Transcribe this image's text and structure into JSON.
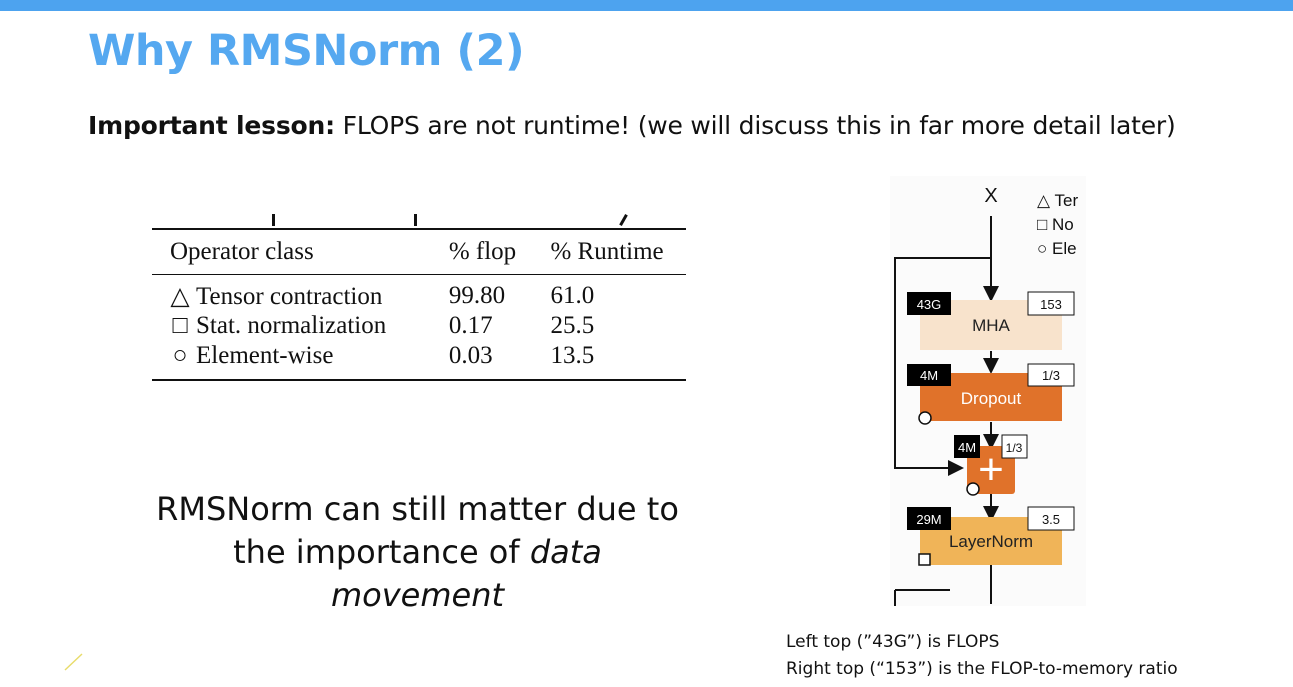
{
  "slide": {
    "title": "Why RMSNorm (2)",
    "lesson_label": "Important lesson:",
    "lesson_text": " FLOPS are not runtime! (we will discuss this in far more detail later)"
  },
  "table": {
    "headers": [
      "Operator class",
      "% flop",
      "% Runtime"
    ],
    "rows": [
      {
        "symbol": "△",
        "operator": "Tensor contraction",
        "flop": "99.80",
        "runtime": "61.0"
      },
      {
        "symbol": "□",
        "operator": "Stat. normalization",
        "flop": "0.17",
        "runtime": "25.5"
      },
      {
        "symbol": "○",
        "operator": "Element-wise",
        "flop": "0.03",
        "runtime": "13.5"
      }
    ]
  },
  "caption": {
    "line1": "RMSNorm can still matter due to",
    "line2_prefix": "the importance of ",
    "line2_emph": "data movement"
  },
  "diagram": {
    "input_label": "X",
    "legend": [
      "△ Ter",
      "□ No",
      "○ Ele"
    ],
    "blocks": [
      {
        "name": "MHA",
        "flops": "43G",
        "ratio": "153",
        "color": "#f8e3cc",
        "text_color": "#222222"
      },
      {
        "name": "Dropout",
        "flops": "4M",
        "ratio": "1/3",
        "color": "#e0722a",
        "text_color": "#ffffff"
      },
      {
        "name": "+",
        "flops": "4M",
        "ratio": "1/3",
        "color": "#e0722a",
        "text_color": "#ffffff"
      },
      {
        "name": "LayerNorm",
        "flops": "29M",
        "ratio": "3.5",
        "color": "#f0b458",
        "text_color": "#222222"
      }
    ]
  },
  "note": {
    "line1": "Left top (”43G”) is FLOPS",
    "line2": "Right top (“153”) is the FLOP-to-memory ratio"
  }
}
